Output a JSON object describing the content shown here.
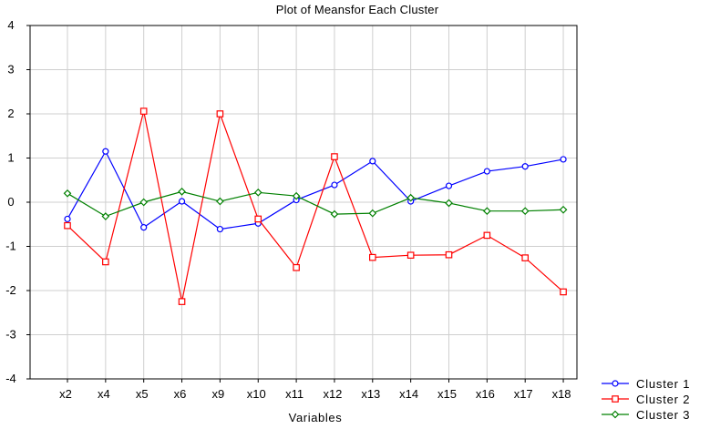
{
  "chart_data": {
    "type": "line",
    "title": "Plot of Meansfor Each Cluster",
    "xlabel": "Variables",
    "ylabel": "",
    "categories": [
      "x2",
      "x4",
      "x5",
      "x6",
      "x9",
      "x10",
      "x11",
      "x12",
      "x13",
      "x14",
      "x15",
      "x16",
      "x17",
      "x18"
    ],
    "ylim": [
      -4,
      4
    ],
    "yticks": [
      -4,
      -3,
      -2,
      -1,
      0,
      1,
      2,
      3,
      4
    ],
    "grid": true,
    "legend_position": "bottom-right",
    "series": [
      {
        "name": "Cluster 1",
        "color": "#0000ff",
        "marker": "circle",
        "values": [
          -0.38,
          1.15,
          -0.57,
          0.02,
          -0.61,
          -0.48,
          0.05,
          0.39,
          0.93,
          0.02,
          0.37,
          0.7,
          0.81,
          0.97
        ]
      },
      {
        "name": "Cluster 2",
        "color": "#ff0000",
        "marker": "square",
        "values": [
          -0.53,
          -1.35,
          2.06,
          -2.25,
          2.0,
          -0.38,
          -1.48,
          1.03,
          -1.25,
          -1.2,
          -1.19,
          -0.75,
          -1.26,
          -2.03
        ]
      },
      {
        "name": "Cluster 3",
        "color": "#008000",
        "marker": "diamond",
        "values": [
          0.2,
          -0.32,
          0.0,
          0.24,
          0.02,
          0.22,
          0.14,
          -0.27,
          -0.25,
          0.1,
          -0.02,
          -0.2,
          -0.2,
          -0.17
        ]
      }
    ]
  }
}
